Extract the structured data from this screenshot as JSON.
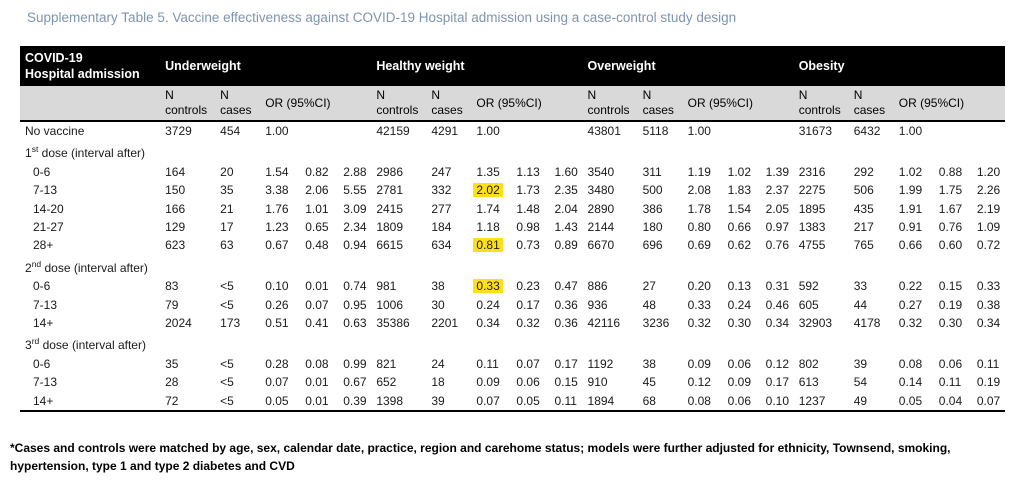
{
  "title": "Supplementary Table 5. Vaccine effectiveness against COVID-19 Hospital admission using a case-control study design",
  "table": {
    "corner": {
      "line1": "COVID-19",
      "line2": "Hospital admission"
    },
    "groups": [
      {
        "label": "Underweight"
      },
      {
        "label": "Healthy weight"
      },
      {
        "label": "Overweight"
      },
      {
        "label": "Obesity"
      }
    ],
    "sub": {
      "n": "N",
      "controls": "controls",
      "cases": "cases",
      "or_label": "OR (95%CI)"
    },
    "rows": [
      {
        "type": "data",
        "label": "No vaccine",
        "indent": false,
        "cells": [
          [
            "3729",
            "454",
            "1.00",
            "",
            ""
          ],
          [
            "42159",
            "4291",
            "1.00",
            "",
            ""
          ],
          [
            "43801",
            "5118",
            "1.00",
            "",
            ""
          ],
          [
            "31673",
            "6432",
            "1.00",
            "",
            ""
          ]
        ]
      },
      {
        "type": "section",
        "label_pre": "1",
        "label_sup": "st",
        "label_post": " dose (interval after)"
      },
      {
        "type": "data",
        "label": "0-6",
        "indent": true,
        "cells": [
          [
            "164",
            "20",
            "1.54",
            "0.82",
            "2.88"
          ],
          [
            "2986",
            "247",
            "1.35",
            "1.13",
            "1.60"
          ],
          [
            "3540",
            "311",
            "1.19",
            "1.02",
            "1.39"
          ],
          [
            "2316",
            "292",
            "1.02",
            "0.88",
            "1.20"
          ]
        ]
      },
      {
        "type": "data",
        "label": "7-13",
        "indent": true,
        "highlights": [
          [
            1,
            2
          ]
        ],
        "cells": [
          [
            "150",
            "35",
            "3.38",
            "2.06",
            "5.55"
          ],
          [
            "2781",
            "332",
            "2.02",
            "1.73",
            "2.35"
          ],
          [
            "3480",
            "500",
            "2.08",
            "1.83",
            "2.37"
          ],
          [
            "2275",
            "506",
            "1.99",
            "1.75",
            "2.26"
          ]
        ]
      },
      {
        "type": "data",
        "label": "14-20",
        "indent": true,
        "cells": [
          [
            "166",
            "21",
            "1.76",
            "1.01",
            "3.09"
          ],
          [
            "2415",
            "277",
            "1.74",
            "1.48",
            "2.04"
          ],
          [
            "2890",
            "386",
            "1.78",
            "1.54",
            "2.05"
          ],
          [
            "1895",
            "435",
            "1.91",
            "1.67",
            "2.19"
          ]
        ]
      },
      {
        "type": "data",
        "label": "21-27",
        "indent": true,
        "cells": [
          [
            "129",
            "17",
            "1.23",
            "0.65",
            "2.34"
          ],
          [
            "1809",
            "184",
            "1.18",
            "0.98",
            "1.43"
          ],
          [
            "2144",
            "180",
            "0.80",
            "0.66",
            "0.97"
          ],
          [
            "1383",
            "217",
            "0.91",
            "0.76",
            "1.09"
          ]
        ]
      },
      {
        "type": "data",
        "label": "28+",
        "indent": true,
        "highlights": [
          [
            1,
            2
          ]
        ],
        "cells": [
          [
            "623",
            "63",
            "0.67",
            "0.48",
            "0.94"
          ],
          [
            "6615",
            "634",
            "0.81",
            "0.73",
            "0.89"
          ],
          [
            "6670",
            "696",
            "0.69",
            "0.62",
            "0.76"
          ],
          [
            "4755",
            "765",
            "0.66",
            "0.60",
            "0.72"
          ]
        ]
      },
      {
        "type": "section",
        "label_pre": "2",
        "label_sup": "nd",
        "label_post": " dose (interval after)"
      },
      {
        "type": "data",
        "label": "0-6",
        "indent": true,
        "highlights": [
          [
            1,
            2
          ]
        ],
        "cells": [
          [
            "83",
            "<5",
            "0.10",
            "0.01",
            "0.74"
          ],
          [
            "981",
            "38",
            "0.33",
            "0.23",
            "0.47"
          ],
          [
            "886",
            "27",
            "0.20",
            "0.13",
            "0.31"
          ],
          [
            "592",
            "33",
            "0.22",
            "0.15",
            "0.33"
          ]
        ]
      },
      {
        "type": "data",
        "label": "7-13",
        "indent": true,
        "cells": [
          [
            "79",
            "<5",
            "0.26",
            "0.07",
            "0.95"
          ],
          [
            "1006",
            "30",
            "0.24",
            "0.17",
            "0.36"
          ],
          [
            "936",
            "48",
            "0.33",
            "0.24",
            "0.46"
          ],
          [
            "605",
            "44",
            "0.27",
            "0.19",
            "0.38"
          ]
        ]
      },
      {
        "type": "data",
        "label": "14+",
        "indent": true,
        "cells": [
          [
            "2024",
            "173",
            "0.51",
            "0.41",
            "0.63"
          ],
          [
            "35386",
            "2201",
            "0.34",
            "0.32",
            "0.36"
          ],
          [
            "42116",
            "3236",
            "0.32",
            "0.30",
            "0.34"
          ],
          [
            "32903",
            "4178",
            "0.32",
            "0.30",
            "0.34"
          ]
        ]
      },
      {
        "type": "section",
        "label_pre": "3",
        "label_sup": "rd",
        "label_post": " dose (interval after)"
      },
      {
        "type": "data",
        "label": "0-6",
        "indent": true,
        "cells": [
          [
            "35",
            "<5",
            "0.28",
            "0.08",
            "0.99"
          ],
          [
            "821",
            "24",
            "0.11",
            "0.07",
            "0.17"
          ],
          [
            "1192",
            "38",
            "0.09",
            "0.06",
            "0.12"
          ],
          [
            "802",
            "39",
            "0.08",
            "0.06",
            "0.11"
          ]
        ]
      },
      {
        "type": "data",
        "label": "7-13",
        "indent": true,
        "cells": [
          [
            "28",
            "<5",
            "0.07",
            "0.01",
            "0.67"
          ],
          [
            "652",
            "18",
            "0.09",
            "0.06",
            "0.15"
          ],
          [
            "910",
            "45",
            "0.12",
            "0.09",
            "0.17"
          ],
          [
            "613",
            "54",
            "0.14",
            "0.11",
            "0.19"
          ]
        ]
      },
      {
        "type": "data",
        "label": "14+",
        "indent": true,
        "cells": [
          [
            "72",
            "<5",
            "0.05",
            "0.01",
            "0.39"
          ],
          [
            "1398",
            "39",
            "0.07",
            "0.05",
            "0.11"
          ],
          [
            "1894",
            "68",
            "0.08",
            "0.06",
            "0.10"
          ],
          [
            "1237",
            "49",
            "0.05",
            "0.04",
            "0.07"
          ]
        ]
      }
    ]
  },
  "footnote": "*Cases and controls were matched by age, sex, calendar date, practice, region and carehome status; models were further adjusted for ethnicity, Townsend, smoking, hypertension, type 1 and type 2 diabetes and CVD",
  "colors": {
    "title_text": "#7d95af",
    "header_bg": "#000000",
    "header_fg": "#ffffff",
    "subheader_bg": "#d9d9d9",
    "highlight": "#ffe018"
  }
}
